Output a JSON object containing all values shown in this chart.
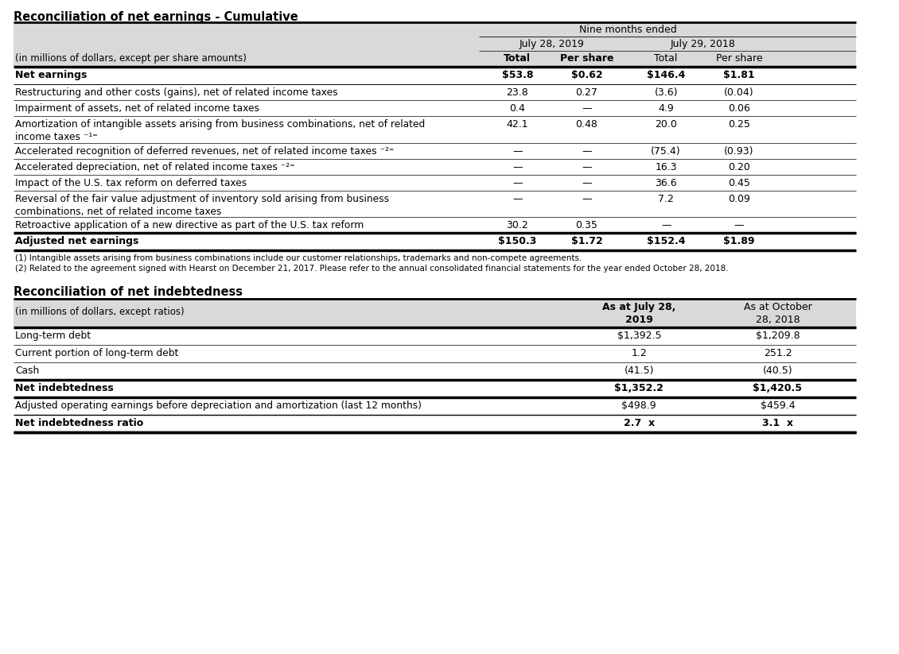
{
  "title1": "Reconciliation of net earnings - Cumulative",
  "title2": "Reconciliation of net indebtedness",
  "table1_rows": [
    {
      "label": "Net earnings",
      "bold": true,
      "v1": "$53.8",
      "v2": "$0.62",
      "v3": "$146.4",
      "v4": "$1.81"
    },
    {
      "label": "Restructuring and other costs (gains), net of related income taxes",
      "bold": false,
      "v1": "23.8",
      "v2": "0.27",
      "v3": "(3.6)",
      "v4": "(0.04)"
    },
    {
      "label": "Impairment of assets, net of related income taxes",
      "bold": false,
      "v1": "0.4",
      "v2": "—",
      "v3": "4.9",
      "v4": "0.06"
    },
    {
      "label": "Amortization of intangible assets arising from business combinations, net of related\nincome taxes ⁻¹⁼",
      "bold": false,
      "v1": "42.1",
      "v2": "0.48",
      "v3": "20.0",
      "v4": "0.25"
    },
    {
      "label": "Accelerated recognition of deferred revenues, net of related income taxes ⁻²⁼",
      "bold": false,
      "v1": "—",
      "v2": "—",
      "v3": "(75.4)",
      "v4": "(0.93)"
    },
    {
      "label": "Accelerated depreciation, net of related income taxes ⁻²⁼",
      "bold": false,
      "v1": "—",
      "v2": "—",
      "v3": "16.3",
      "v4": "0.20"
    },
    {
      "label": "Impact of the U.S. tax reform on deferred taxes",
      "bold": false,
      "v1": "—",
      "v2": "—",
      "v3": "36.6",
      "v4": "0.45"
    },
    {
      "label": "Reversal of the fair value adjustment of inventory sold arising from business\ncombinations, net of related income taxes",
      "bold": false,
      "v1": "—",
      "v2": "—",
      "v3": "7.2",
      "v4": "0.09"
    },
    {
      "label": "Retroactive application of a new directive as part of the U.S. tax reform",
      "bold": false,
      "v1": "30.2",
      "v2": "0.35",
      "v3": "—",
      "v4": "—"
    },
    {
      "label": "Adjusted net earnings",
      "bold": true,
      "v1": "$150.3",
      "v2": "$1.72",
      "v3": "$152.4",
      "v4": "$1.89"
    }
  ],
  "footnotes": [
    "(1) Intangible assets arising from business combinations include our customer relationships, trademarks and non-compete agreements.",
    "(2) Related to the agreement signed with Hearst on December 21, 2017. Please refer to the annual consolidated financial statements for the year ended October 28, 2018."
  ],
  "table2_rows": [
    {
      "label": "Long-term debt",
      "bold": false,
      "v1": "$1,392.5",
      "v2": "$1,209.8"
    },
    {
      "label": "Current portion of long-term debt",
      "bold": false,
      "v1": "1.2",
      "v2": "251.2"
    },
    {
      "label": "Cash",
      "bold": false,
      "v1": "(41.5)",
      "v2": "(40.5)"
    },
    {
      "label": "Net indebtedness",
      "bold": true,
      "v1": "$1,352.2",
      "v2": "$1,420.5"
    },
    {
      "label": "Adjusted operating earnings before depreciation and amortization (last 12 months)",
      "bold": false,
      "v1": "$498.9",
      "v2": "$459.4"
    },
    {
      "label": "Net indebtedness ratio",
      "bold": true,
      "v1": "2.7  x",
      "v2": "3.1  x"
    }
  ],
  "bg_color": "#ffffff",
  "header_bg": "#d9d9d9",
  "text_color": "#000000",
  "font_size": 9.0,
  "title_font_size": 10.5
}
